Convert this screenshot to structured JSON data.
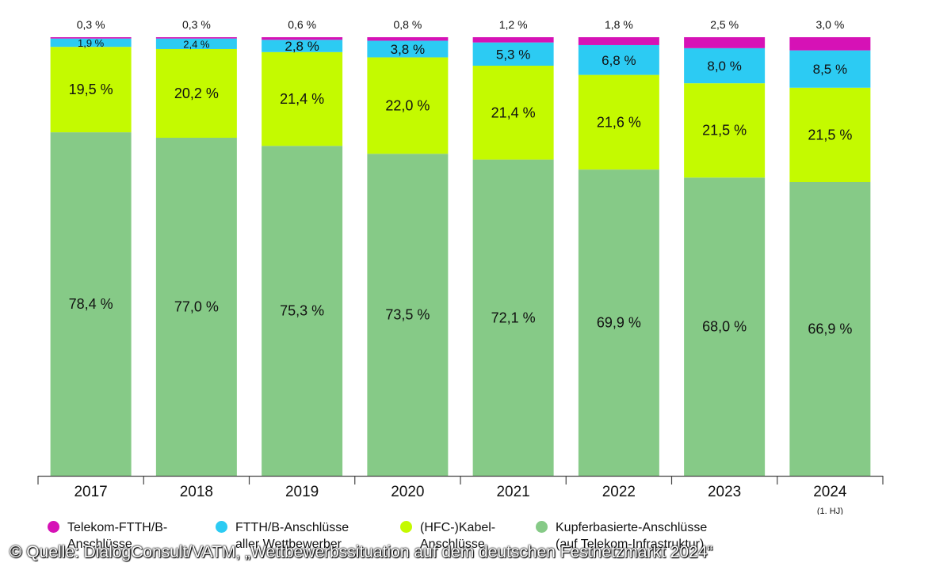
{
  "chart_data": {
    "type": "bar",
    "stacked": true,
    "categories": [
      "2017",
      "2018",
      "2019",
      "2020",
      "2021",
      "2022",
      "2023",
      "2024"
    ],
    "category_sublabels": [
      "",
      "",
      "",
      "",
      "",
      "",
      "",
      "(1. HJ)"
    ],
    "series": [
      {
        "name": "Kupferbasierte-Anschlüsse (auf Telekom-Infrastruktur)",
        "color": "#86ca87",
        "values": [
          78.4,
          77.0,
          75.3,
          73.5,
          72.1,
          69.9,
          68.0,
          66.9
        ],
        "labels": [
          "78,4 %",
          "77,0 %",
          "75,3 %",
          "73,5 %",
          "72,1 %",
          "69,9 %",
          "68,0 %",
          "66,9 %"
        ]
      },
      {
        "name": "(HFC-)Kabel-Anschlüsse",
        "color": "#c4fa00",
        "values": [
          19.5,
          20.2,
          21.4,
          22.0,
          21.4,
          21.6,
          21.5,
          21.5
        ],
        "labels": [
          "19,5 %",
          "20,2 %",
          "21,4 %",
          "22,0 %",
          "21,4 %",
          "21,6 %",
          "21,5 %",
          "21,5 %"
        ]
      },
      {
        "name": "FTTH/B-Anschlüsse aller Wettbewerber",
        "color": "#2ccbf3",
        "values": [
          1.9,
          2.4,
          2.8,
          3.8,
          5.3,
          6.8,
          8.0,
          8.5
        ],
        "labels": [
          "1,9 %",
          "2,4 %",
          "2,8 %",
          "3,8 %",
          "5,3 %",
          "6,8 %",
          "8,0 %",
          "8,5 %"
        ]
      },
      {
        "name": "Telekom-FTTH/B-Anschlüsse",
        "color": "#d612b6",
        "values": [
          0.3,
          0.3,
          0.6,
          0.8,
          1.2,
          1.8,
          2.5,
          3.0
        ],
        "labels": [
          "0,3 %",
          "0,3 %",
          "0,6 %",
          "0,8 %",
          "1,2 %",
          "1,8 %",
          "2,5 %",
          "3,0 %"
        ]
      }
    ],
    "ylim": [
      0,
      100
    ],
    "grid": false
  },
  "legend": {
    "items": [
      {
        "line1": "Telekom-FTTH/B-",
        "line2": "Anschlüsse",
        "color": "#d612b6",
        "icon": "circle"
      },
      {
        "line1": "FTTH/B-Anschlüsse",
        "line2": "aller Wettbewerber",
        "color": "#2ccbf3",
        "icon": "circle"
      },
      {
        "line1": "(HFC-)Kabel-",
        "line2": "Anschlüsse",
        "color": "#c4fa00",
        "icon": "circle"
      },
      {
        "line1": "Kupferbasierte-Anschlüsse",
        "line2": "(auf Telekom-Infrastruktur)",
        "color": "#86ca87",
        "icon": "circle"
      }
    ]
  },
  "source": "© Quelle: DialogConsult/VATM, „Wettbewerbssituation auf dem deutschen Festnetzmarkt 2024“"
}
